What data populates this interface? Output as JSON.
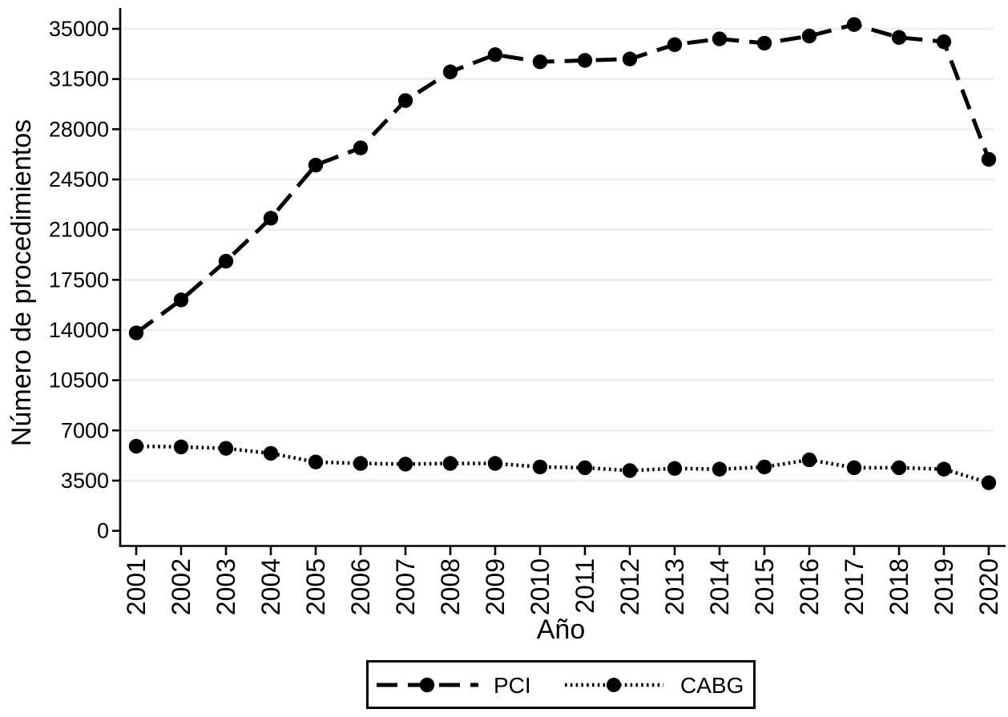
{
  "figure": {
    "background_color": "#ffffff",
    "axis_color": "#000000",
    "series_color": "#000000",
    "grid_color": "#e8f1f2"
  },
  "chart_data": {
    "type": "line",
    "title": "",
    "xlabel": "Año",
    "ylabel": "Número de procedimientos",
    "x": [
      2001,
      2002,
      2003,
      2004,
      2005,
      2006,
      2007,
      2008,
      2009,
      2010,
      2011,
      2012,
      2013,
      2014,
      2015,
      2016,
      2017,
      2018,
      2019,
      2020
    ],
    "y_ticks": [
      0,
      3500,
      7000,
      10500,
      14000,
      17500,
      21000,
      24500,
      28000,
      31500,
      35000
    ],
    "ylim": [
      0,
      36500
    ],
    "grid": "horizontal",
    "legend_position": "bottom",
    "series": [
      {
        "name": "PCI",
        "line_style": "dashed",
        "marker": "circle",
        "color": "#000000",
        "values": [
          13800,
          16100,
          18800,
          21800,
          25500,
          26700,
          30000,
          32000,
          33200,
          32700,
          32800,
          32900,
          33900,
          34300,
          34000,
          34500,
          35300,
          34400,
          34100,
          25900
        ]
      },
      {
        "name": "CABG",
        "line_style": "dotted",
        "marker": "circle",
        "color": "#000000",
        "values": [
          5900,
          5850,
          5750,
          5400,
          4800,
          4700,
          4650,
          4700,
          4700,
          4450,
          4400,
          4200,
          4350,
          4300,
          4450,
          4950,
          4400,
          4400,
          4300,
          3350
        ]
      }
    ]
  }
}
